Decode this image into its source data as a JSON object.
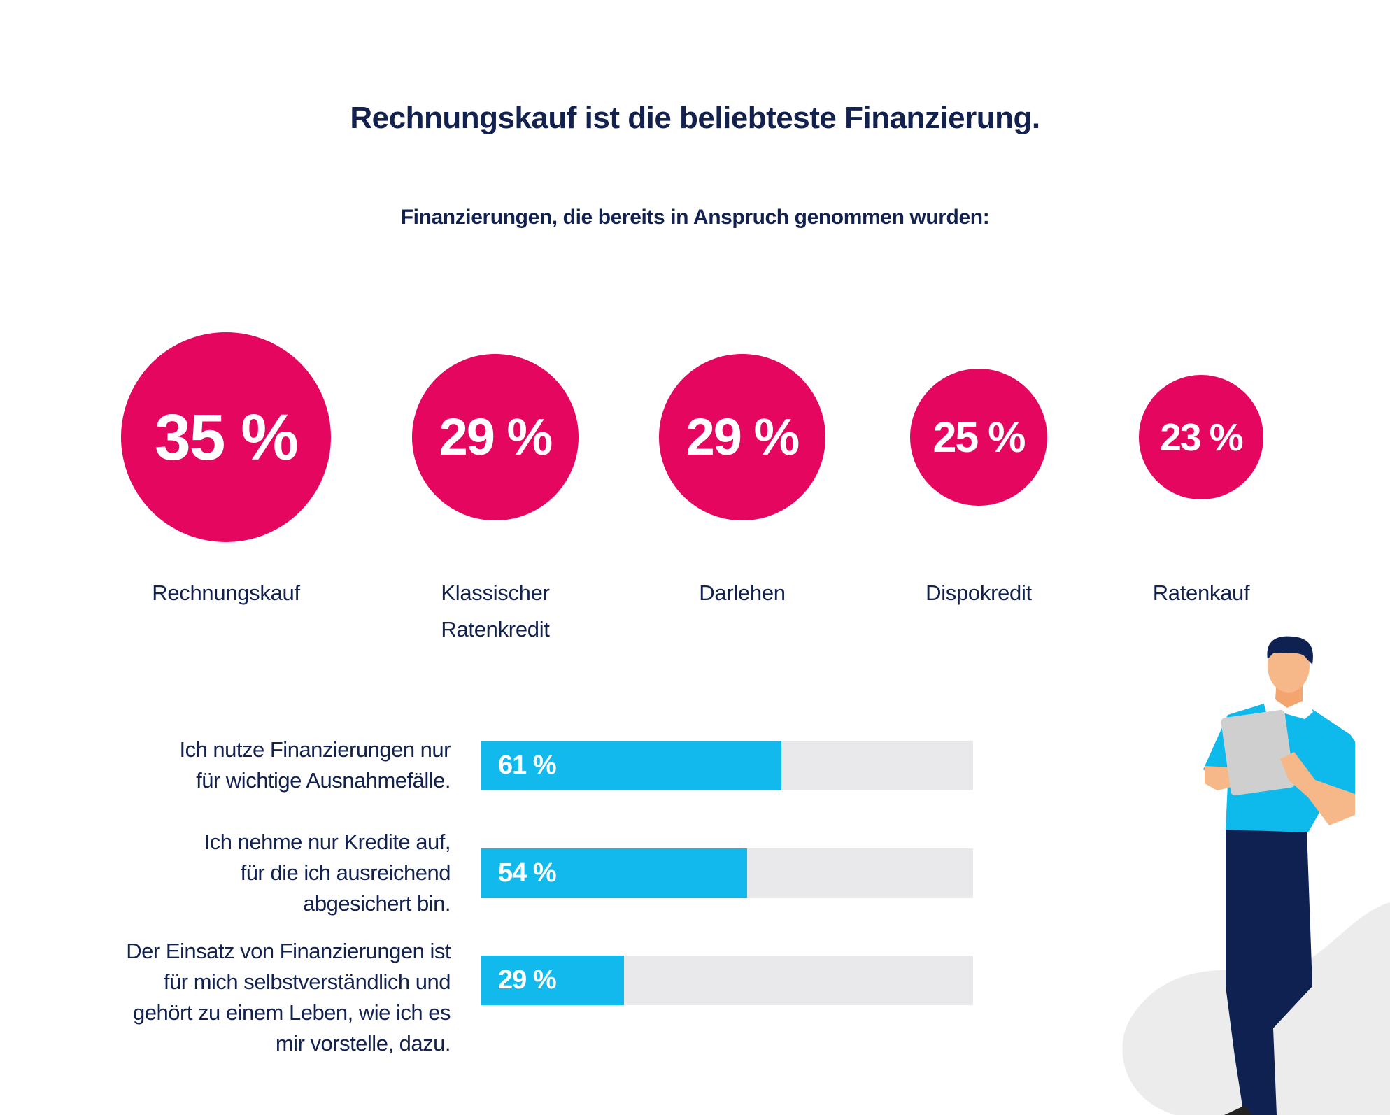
{
  "title": "Rechnungskauf ist die beliebteste Finanzierung.",
  "subtitle": "Finanzierungen, die bereits in Anspruch genommen wurden:",
  "colors": {
    "circle": "#e4065f",
    "bar": "#12b9ec",
    "track": "#e9e9eb",
    "text": "#13214f"
  },
  "chart_data": [
    {
      "type": "bubble",
      "categories": [
        "Rechnungskauf",
        "Klassischer Ratenkredit",
        "Darlehen",
        "Dispokredit",
        "Ratenkauf"
      ],
      "label_lines": [
        [
          "Rechnungskauf"
        ],
        [
          "Klassischer",
          "Ratenkredit"
        ],
        [
          "Darlehen"
        ],
        [
          "Dispokredit"
        ],
        [
          "Ratenkauf"
        ]
      ],
      "values": [
        35,
        29,
        29,
        25,
        23
      ],
      "value_labels": [
        "35 %",
        "29 %",
        "29 %",
        "25 %",
        "23 %"
      ],
      "unit": "%"
    },
    {
      "type": "bar",
      "orientation": "horizontal",
      "categories": [
        "Ich nutze Finanzierungen nur für wichtige Ausnahmefälle.",
        "Ich nehme nur Kredite auf, für die ich ausreichend abgesichert bin.",
        "Der Einsatz von Finanzierungen ist für mich selbstverständlich und gehört zu einem Leben, wie ich es mir vorstelle, dazu."
      ],
      "label_lines": [
        [
          "Ich nutze Finanzierungen nur",
          "für wichtige Ausnahmefälle."
        ],
        [
          "Ich nehme nur Kredite auf,",
          "für die ich ausreichend",
          "abgesichert bin."
        ],
        [
          "Der Einsatz von Finanzierungen ist",
          "für mich selbstverständlich und",
          "gehört zu einem Leben, wie ich es",
          "mir vorstelle, dazu."
        ]
      ],
      "values": [
        61,
        54,
        29
      ],
      "value_labels": [
        "61 %",
        "54 %",
        "29 %"
      ],
      "xlim": [
        0,
        100
      ],
      "unit": "%"
    }
  ]
}
